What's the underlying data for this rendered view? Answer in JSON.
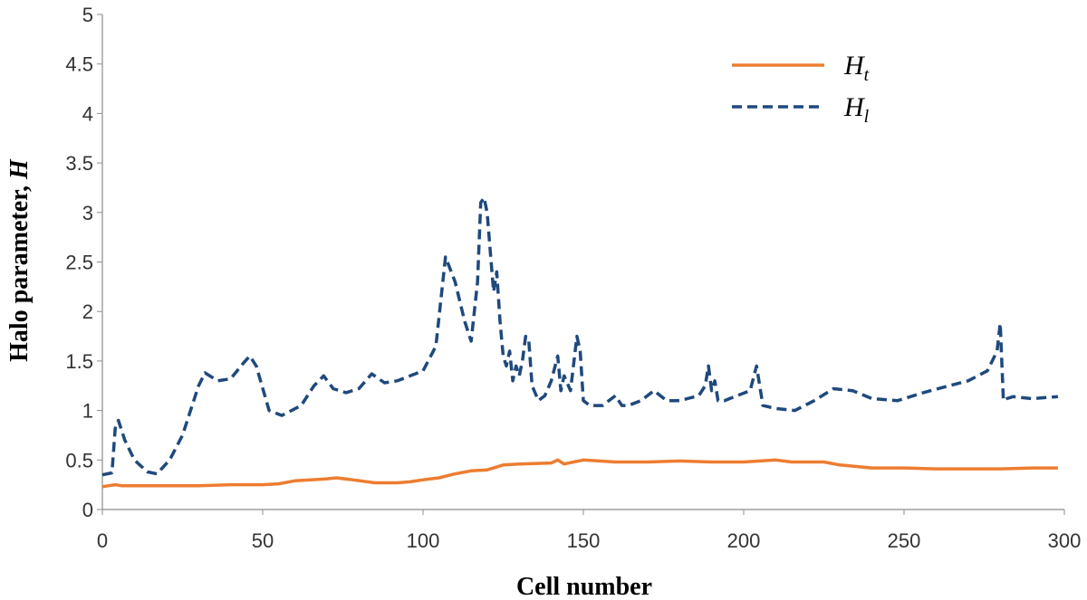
{
  "chart_data": {
    "type": "line",
    "xlabel": "Cell number",
    "ylabel_main": "Halo parameter, ",
    "ylabel_var": "H",
    "xlim": [
      0,
      300
    ],
    "ylim": [
      0,
      5
    ],
    "x_ticks": [
      0,
      50,
      100,
      150,
      200,
      250,
      300
    ],
    "y_ticks": [
      0,
      0.5,
      1,
      1.5,
      2,
      2.5,
      3,
      3.5,
      4,
      4.5,
      5
    ],
    "grid": false,
    "legend_position": "top-right",
    "series": [
      {
        "name_main": "H",
        "name_sub": "t",
        "color": "#ED7D31",
        "style": "solid",
        "x": [
          0,
          2,
          4,
          6,
          10,
          20,
          30,
          40,
          50,
          55,
          60,
          65,
          70,
          73,
          78,
          85,
          92,
          96,
          100,
          105,
          110,
          115,
          120,
          125,
          130,
          140,
          142,
          144,
          150,
          160,
          170,
          180,
          190,
          200,
          210,
          215,
          220,
          225,
          230,
          240,
          250,
          260,
          270,
          280,
          290,
          298
        ],
        "y": [
          0.23,
          0.24,
          0.25,
          0.24,
          0.24,
          0.24,
          0.24,
          0.25,
          0.25,
          0.26,
          0.29,
          0.3,
          0.31,
          0.32,
          0.3,
          0.27,
          0.27,
          0.28,
          0.3,
          0.32,
          0.36,
          0.39,
          0.4,
          0.45,
          0.46,
          0.47,
          0.5,
          0.46,
          0.5,
          0.48,
          0.48,
          0.49,
          0.48,
          0.48,
          0.5,
          0.48,
          0.48,
          0.48,
          0.45,
          0.42,
          0.42,
          0.41,
          0.41,
          0.41,
          0.42,
          0.42
        ]
      },
      {
        "name_main": "H",
        "name_sub": "l",
        "color": "#1F497D",
        "style": "dashed",
        "x": [
          0,
          3,
          4,
          5,
          7,
          10,
          14,
          17,
          21,
          25,
          30,
          32,
          36,
          40,
          44,
          46,
          48,
          52,
          56,
          62,
          66,
          69,
          72,
          76,
          80,
          84,
          88,
          92,
          96,
          100,
          104,
          107,
          110,
          113,
          115,
          117,
          118,
          119,
          120,
          121,
          122,
          123,
          124,
          125,
          126,
          127,
          128,
          129,
          130,
          131,
          132,
          133,
          134,
          136,
          138,
          140,
          142,
          143,
          144,
          146,
          148,
          149,
          150,
          152,
          156,
          160,
          162,
          164,
          168,
          172,
          176,
          180,
          186,
          188,
          189,
          190,
          191,
          192,
          194,
          198,
          202,
          204,
          206,
          210,
          216,
          222,
          228,
          234,
          240,
          248,
          256,
          264,
          270,
          276,
          279,
          280,
          281,
          282,
          284,
          290,
          298
        ],
        "y": [
          0.35,
          0.37,
          0.82,
          0.9,
          0.7,
          0.5,
          0.38,
          0.36,
          0.5,
          0.75,
          1.25,
          1.38,
          1.3,
          1.32,
          1.48,
          1.55,
          1.45,
          1.0,
          0.95,
          1.05,
          1.25,
          1.35,
          1.22,
          1.18,
          1.22,
          1.37,
          1.28,
          1.3,
          1.35,
          1.4,
          1.65,
          2.55,
          2.3,
          1.9,
          1.7,
          2.3,
          3.1,
          3.15,
          3.0,
          2.6,
          2.2,
          2.4,
          1.9,
          1.55,
          1.45,
          1.6,
          1.3,
          1.45,
          1.35,
          1.5,
          1.75,
          1.7,
          1.25,
          1.1,
          1.15,
          1.3,
          1.55,
          1.2,
          1.35,
          1.2,
          1.75,
          1.6,
          1.1,
          1.05,
          1.05,
          1.15,
          1.05,
          1.05,
          1.1,
          1.2,
          1.1,
          1.1,
          1.15,
          1.25,
          1.45,
          1.2,
          1.3,
          1.1,
          1.1,
          1.15,
          1.2,
          1.45,
          1.05,
          1.02,
          1.0,
          1.1,
          1.22,
          1.2,
          1.12,
          1.1,
          1.18,
          1.25,
          1.3,
          1.4,
          1.6,
          1.88,
          1.1,
          1.12,
          1.14,
          1.12,
          1.14
        ]
      }
    ]
  }
}
